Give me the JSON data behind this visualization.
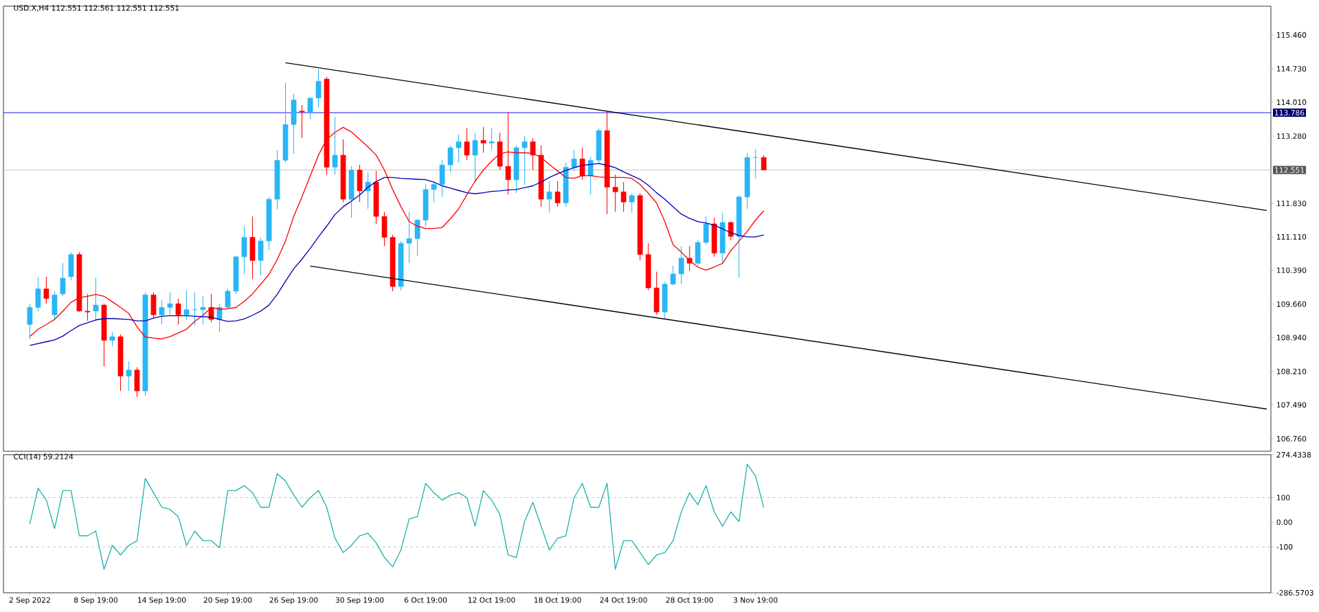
{
  "chart_data": [
    {
      "type": "candlestick",
      "title": "USD.X,H4 112.551 112.561 112.551 112.551",
      "categories": [
        null,
        null,
        null,
        null,
        null,
        null,
        null,
        null,
        null,
        null,
        null,
        null,
        null,
        null,
        null,
        null,
        null,
        null,
        null,
        null,
        null,
        null,
        null,
        null,
        null,
        null,
        null,
        null,
        null,
        null,
        null,
        null,
        null,
        null,
        null,
        null,
        null,
        null,
        null,
        null,
        null,
        null,
        null,
        null,
        null,
        null,
        null,
        null,
        null,
        null,
        null,
        null,
        null,
        null,
        null,
        null,
        null,
        null,
        null,
        null,
        null,
        null,
        null,
        null,
        null,
        null,
        null,
        null,
        null,
        null,
        null,
        null,
        null,
        null,
        null,
        null,
        null,
        null,
        null,
        null,
        null,
        null,
        null,
        null,
        null,
        null,
        null,
        null,
        null,
        null,
        null,
        null,
        null,
        null,
        null,
        null,
        null,
        null,
        null,
        null,
        null,
        null,
        null,
        null,
        null,
        null,
        null,
        null,
        null,
        null,
        null,
        null,
        null,
        null,
        null,
        null,
        null,
        null,
        null,
        null,
        null,
        null,
        null,
        null,
        null,
        null,
        null,
        null,
        null,
        null,
        null,
        null,
        null,
        null,
        null,
        null,
        null,
        null,
        null,
        null,
        null,
        null,
        null,
        null,
        null,
        null,
        null,
        null,
        null,
        null,
        null
      ],
      "ohlc": [
        [
          109.22,
          109.67,
          108.9,
          109.59
        ],
        [
          109.59,
          110.25,
          109.51,
          109.99
        ],
        [
          109.99,
          110.25,
          109.67,
          109.78
        ],
        [
          109.43,
          109.94,
          109.35,
          109.86
        ],
        [
          109.88,
          110.54,
          109.83,
          110.22
        ],
        [
          110.25,
          110.78,
          110.17,
          110.73
        ],
        [
          110.73,
          110.78,
          109.49,
          109.51
        ],
        [
          109.51,
          109.88,
          109.3,
          109.49
        ],
        [
          109.51,
          110.23,
          109.3,
          109.64
        ],
        [
          109.64,
          109.67,
          108.32,
          108.88
        ],
        [
          108.88,
          109.06,
          108.75,
          108.96
        ],
        [
          108.96,
          109.01,
          107.79,
          108.11
        ],
        [
          108.11,
          108.43,
          107.79,
          108.24
        ],
        [
          108.24,
          108.3,
          107.66,
          107.79
        ],
        [
          107.79,
          109.91,
          107.69,
          109.86
        ],
        [
          109.86,
          109.91,
          109.35,
          109.43
        ],
        [
          109.43,
          109.75,
          109.22,
          109.59
        ],
        [
          109.59,
          109.91,
          109.43,
          109.67
        ],
        [
          109.67,
          109.78,
          109.22,
          109.43
        ],
        [
          109.43,
          109.96,
          109.33,
          109.54
        ],
        [
          109.54,
          109.91,
          109.2,
          109.54
        ],
        [
          109.54,
          109.83,
          109.22,
          109.59
        ],
        [
          109.59,
          109.88,
          109.27,
          109.33
        ],
        [
          109.33,
          109.67,
          109.06,
          109.59
        ],
        [
          109.59,
          109.99,
          109.56,
          109.94
        ],
        [
          109.94,
          110.7,
          109.88,
          110.68
        ],
        [
          110.68,
          111.34,
          110.31,
          111.1
        ],
        [
          111.1,
          111.55,
          110.2,
          110.6
        ],
        [
          110.6,
          111.1,
          110.28,
          111.02
        ],
        [
          111.02,
          111.97,
          110.83,
          111.92
        ],
        [
          111.92,
          112.98,
          111.71,
          112.76
        ],
        [
          112.76,
          114.43,
          112.71,
          113.53
        ],
        [
          113.53,
          114.19,
          112.9,
          114.06
        ],
        [
          113.82,
          113.95,
          113.24,
          113.8
        ],
        [
          113.8,
          114.11,
          113.64,
          114.1
        ],
        [
          114.1,
          114.72,
          113.9,
          114.46
        ],
        [
          114.51,
          114.56,
          112.45,
          112.61
        ],
        [
          112.61,
          113.69,
          112.45,
          112.87
        ],
        [
          112.87,
          113.21,
          111.86,
          111.92
        ],
        [
          111.92,
          112.63,
          111.52,
          112.55
        ],
        [
          112.55,
          112.66,
          111.86,
          112.1
        ],
        [
          112.1,
          112.5,
          111.71,
          112.29
        ],
        [
          112.29,
          112.53,
          111.39,
          111.55
        ],
        [
          111.55,
          111.65,
          110.91,
          111.1
        ],
        [
          111.1,
          111.15,
          109.94,
          110.04
        ],
        [
          110.04,
          111.02,
          109.96,
          110.97
        ],
        [
          110.97,
          111.65,
          110.54,
          111.07
        ],
        [
          111.07,
          111.5,
          110.7,
          111.47
        ],
        [
          111.47,
          112.24,
          111.34,
          112.13
        ],
        [
          112.13,
          112.29,
          111.86,
          112.24
        ],
        [
          112.24,
          112.76,
          111.97,
          112.66
        ],
        [
          112.66,
          113.08,
          112.5,
          113.03
        ],
        [
          113.03,
          113.32,
          112.71,
          113.16
        ],
        [
          113.16,
          113.45,
          112.76,
          112.87
        ],
        [
          112.87,
          113.35,
          112.29,
          113.19
        ],
        [
          113.19,
          113.48,
          112.92,
          113.13
        ],
        [
          113.13,
          113.45,
          112.98,
          113.16
        ],
        [
          113.16,
          113.35,
          112.55,
          112.63
        ],
        [
          112.63,
          113.8,
          112.02,
          112.34
        ],
        [
          112.34,
          113.08,
          112.05,
          113.03
        ],
        [
          113.03,
          113.29,
          112.23,
          113.16
        ],
        [
          113.16,
          113.24,
          112.55,
          112.87
        ],
        [
          112.87,
          113.08,
          111.76,
          111.92
        ],
        [
          111.92,
          112.31,
          111.63,
          112.08
        ],
        [
          112.08,
          112.31,
          111.76,
          111.84
        ],
        [
          111.84,
          112.71,
          111.76,
          112.61
        ],
        [
          112.61,
          112.98,
          112.53,
          112.79
        ],
        [
          112.79,
          113.03,
          112.34,
          112.42
        ],
        [
          112.42,
          112.84,
          112.02,
          112.76
        ],
        [
          112.76,
          113.45,
          112.68,
          113.4
        ],
        [
          113.4,
          113.82,
          111.6,
          112.18
        ],
        [
          112.18,
          112.45,
          111.65,
          112.08
        ],
        [
          112.08,
          112.29,
          111.65,
          111.86
        ],
        [
          111.86,
          112.05,
          111.63,
          112.0
        ],
        [
          112.0,
          112.05,
          110.6,
          110.73
        ],
        [
          110.73,
          110.97,
          109.96,
          110.01
        ],
        [
          110.01,
          110.36,
          109.43,
          109.49
        ],
        [
          109.49,
          110.14,
          109.35,
          110.09
        ],
        [
          110.09,
          110.49,
          110.07,
          110.31
        ],
        [
          110.31,
          110.91,
          110.09,
          110.65
        ],
        [
          110.65,
          110.91,
          110.38,
          110.54
        ],
        [
          110.54,
          111.04,
          110.49,
          110.99
        ],
        [
          110.99,
          111.55,
          110.94,
          111.39
        ],
        [
          111.39,
          111.52,
          110.68,
          110.76
        ],
        [
          110.76,
          111.63,
          110.54,
          111.42
        ],
        [
          111.42,
          111.44,
          111.04,
          111.12
        ],
        [
          111.12,
          112.0,
          110.23,
          111.97
        ],
        [
          111.97,
          112.92,
          111.71,
          112.82
        ],
        [
          112.82,
          113.0,
          112.37,
          112.82
        ],
        [
          112.82,
          112.87,
          112.55,
          112.55
        ],
        null,
        null,
        null,
        null,
        null,
        null,
        null,
        null,
        null,
        null,
        null,
        null,
        null,
        null,
        null,
        null,
        null,
        null,
        null,
        null,
        null,
        null,
        null,
        null,
        null,
        null,
        null,
        null,
        null,
        null,
        null,
        null,
        null,
        null,
        null,
        null,
        null,
        null,
        null,
        null,
        null,
        null,
        null,
        null,
        null,
        null,
        null,
        null,
        null,
        null,
        null,
        null,
        null,
        null,
        null,
        null,
        null,
        null,
        null,
        null,
        null
      ],
      "series": [
        {
          "type": "line",
          "color": "#ff0000",
          "values": [
            108.96,
            109.12,
            109.22,
            109.33,
            109.51,
            109.7,
            109.8,
            109.83,
            109.87,
            109.83,
            109.71,
            109.59,
            109.46,
            109.17,
            108.95,
            108.93,
            108.91,
            108.96,
            109.04,
            109.12,
            109.29,
            109.42,
            109.59,
            109.55,
            109.56,
            109.59,
            109.72,
            109.88,
            110.09,
            110.3,
            110.62,
            111.02,
            111.55,
            111.97,
            112.42,
            112.87,
            113.21,
            113.36,
            113.47,
            113.37,
            113.21,
            113.05,
            112.87,
            112.55,
            112.13,
            111.76,
            111.44,
            111.34,
            111.29,
            111.29,
            111.31,
            111.5,
            111.71,
            112.02,
            112.31,
            112.55,
            112.74,
            112.9,
            112.94,
            112.92,
            112.92,
            112.91,
            112.82,
            112.67,
            112.53,
            112.39,
            112.37,
            112.43,
            112.43,
            112.4,
            112.39,
            112.39,
            112.39,
            112.37,
            112.24,
            112.05,
            111.84,
            111.44,
            110.94,
            110.78,
            110.6,
            110.46,
            110.39,
            110.46,
            110.54,
            110.81,
            111.02,
            111.23,
            111.47,
            111.67,
            null,
            null,
            null,
            null,
            null,
            null,
            null,
            null,
            null,
            null,
            null,
            null,
            null,
            null,
            null,
            null,
            null,
            null,
            null,
            null,
            null,
            null,
            null,
            null,
            null,
            null,
            null,
            null,
            null,
            null,
            null,
            null,
            null,
            null,
            null,
            null,
            null,
            null,
            null,
            null,
            null,
            null,
            null,
            null,
            null,
            null,
            null,
            null,
            null,
            null,
            null,
            null,
            null,
            null,
            null,
            null,
            null,
            null,
            null,
            null,
            null
          ]
        },
        {
          "type": "line",
          "color": "#0000b4",
          "values": [
            108.77,
            108.81,
            108.85,
            108.89,
            108.97,
            109.09,
            109.2,
            109.26,
            109.32,
            109.35,
            109.35,
            109.34,
            109.33,
            109.3,
            109.3,
            109.36,
            109.4,
            109.41,
            109.41,
            109.41,
            109.4,
            109.39,
            109.38,
            109.33,
            109.29,
            109.3,
            109.34,
            109.42,
            109.51,
            109.64,
            109.87,
            110.15,
            110.42,
            110.63,
            110.86,
            111.11,
            111.34,
            111.59,
            111.76,
            111.88,
            112.01,
            112.18,
            112.3,
            112.39,
            112.39,
            112.37,
            112.36,
            112.35,
            112.34,
            112.29,
            112.21,
            112.16,
            112.11,
            112.06,
            112.04,
            112.06,
            112.09,
            112.1,
            112.12,
            112.13,
            112.17,
            112.21,
            112.29,
            112.39,
            112.47,
            112.54,
            112.6,
            112.65,
            112.67,
            112.69,
            112.65,
            112.6,
            112.51,
            112.43,
            112.35,
            112.22,
            112.06,
            111.92,
            111.76,
            111.6,
            111.51,
            111.44,
            111.41,
            111.36,
            111.28,
            111.2,
            111.14,
            111.11,
            111.11,
            111.15,
            null,
            null,
            null,
            null,
            null,
            null,
            null,
            null,
            null,
            null,
            null,
            null,
            null,
            null,
            null,
            null,
            null,
            null,
            null,
            null,
            null,
            null,
            null,
            null,
            null,
            null,
            null,
            null,
            null,
            null,
            null,
            null,
            null,
            null,
            null,
            null,
            null,
            null,
            null,
            null,
            null,
            null,
            null,
            null,
            null,
            null,
            null,
            null,
            null,
            null,
            null,
            null,
            null,
            null,
            null,
            null,
            null,
            null,
            null,
            null,
            null
          ]
        },
        {
          "type": "line",
          "color": "#000000",
          "values": [
            null,
            null,
            null,
            null,
            null,
            null,
            null,
            null,
            null,
            null,
            null,
            null,
            null,
            null,
            null,
            null,
            null,
            null,
            null,
            null,
            null,
            null,
            null,
            null,
            null,
            null,
            null,
            null,
            null,
            null,
            null,
            114.86,
            null,
            null,
            null,
            null,
            null,
            null,
            null,
            null,
            null,
            null,
            null,
            null,
            null,
            null,
            null,
            null,
            null,
            null,
            null,
            null,
            null,
            null,
            null,
            null,
            null,
            null,
            null,
            null,
            null,
            null,
            null,
            null,
            null,
            null,
            null,
            null,
            null,
            null,
            null,
            null,
            null,
            null,
            null,
            null,
            null,
            null,
            null,
            null,
            null,
            null,
            null,
            null,
            null,
            null,
            null,
            null,
            null,
            null,
            null,
            null,
            null,
            null,
            null,
            null,
            null,
            null,
            null,
            null,
            null,
            null,
            null,
            null,
            null,
            null,
            null,
            null,
            null,
            null,
            null,
            null,
            null,
            null,
            null,
            null,
            null,
            null,
            null,
            null,
            null,
            null,
            null,
            null,
            null,
            null,
            null,
            null,
            null,
            null,
            null,
            null,
            null,
            null,
            null,
            null,
            null,
            null,
            null,
            null,
            null,
            null,
            null,
            null,
            null,
            null,
            null,
            null,
            null,
            null,
            111.68
          ]
        },
        {
          "type": "line",
          "color": "#000000",
          "values": [
            null,
            null,
            null,
            null,
            null,
            null,
            null,
            null,
            null,
            null,
            null,
            null,
            null,
            null,
            null,
            null,
            null,
            null,
            null,
            null,
            null,
            null,
            null,
            null,
            null,
            null,
            null,
            null,
            null,
            null,
            null,
            null,
            null,
            null,
            110.48,
            null,
            null,
            null,
            null,
            null,
            null,
            null,
            null,
            null,
            null,
            null,
            null,
            null,
            null,
            null,
            null,
            null,
            null,
            null,
            null,
            null,
            null,
            null,
            null,
            null,
            null,
            null,
            null,
            null,
            null,
            null,
            null,
            null,
            null,
            null,
            null,
            null,
            null,
            null,
            null,
            null,
            null,
            null,
            null,
            null,
            null,
            null,
            null,
            null,
            null,
            null,
            null,
            null,
            null,
            null,
            null,
            null,
            null,
            null,
            null,
            null,
            null,
            null,
            null,
            null,
            null,
            null,
            null,
            null,
            null,
            null,
            null,
            null,
            null,
            null,
            null,
            null,
            null,
            null,
            null,
            null,
            null,
            null,
            null,
            null,
            null,
            null,
            null,
            null,
            null,
            null,
            null,
            null,
            null,
            null,
            null,
            null,
            null,
            null,
            null,
            null,
            null,
            null,
            null,
            null,
            null,
            null,
            null,
            null,
            null,
            null,
            null,
            null,
            null,
            null,
            107.4
          ]
        }
      ],
      "ylim": [
        106.49,
        116.08
      ],
      "yticks": [
        {
          "value": 115.46,
          "label": "115.460"
        },
        {
          "value": 114.73,
          "label": "114.730"
        },
        {
          "value": 114.01,
          "label": "114.010"
        },
        {
          "value": 113.28,
          "label": "113.280"
        },
        {
          "value": 111.83,
          "label": "111.830"
        },
        {
          "value": 111.11,
          "label": "111.110"
        },
        {
          "value": 110.39,
          "label": "110.390"
        },
        {
          "value": 109.66,
          "label": "109.660"
        },
        {
          "value": 108.94,
          "label": "108.940"
        },
        {
          "value": 108.21,
          "label": "108.210"
        },
        {
          "value": 107.49,
          "label": "107.490"
        },
        {
          "value": 106.76,
          "label": "106.760"
        }
      ],
      "ref_lines": [
        {
          "axis": "y",
          "value": 113.786,
          "label": "113.786",
          "color": "#0000ff"
        },
        {
          "axis": "y",
          "value": 112.551,
          "label": "112.551",
          "color": "#c0c0c0"
        }
      ],
      "tick_labels": "y"
    },
    {
      "type": "line",
      "title": "CCI(14) 59.2124",
      "categories": [
        "2 Sep 2022",
        null,
        null,
        null,
        null,
        null,
        null,
        null,
        "8 Sep 19:00",
        null,
        null,
        null,
        null,
        null,
        null,
        null,
        "14 Sep 19:00",
        null,
        null,
        null,
        null,
        null,
        null,
        null,
        "20 Sep 19:00",
        null,
        null,
        null,
        null,
        null,
        null,
        null,
        "26 Sep 19:00",
        null,
        null,
        null,
        null,
        null,
        null,
        null,
        "30 Sep 19:00",
        null,
        null,
        null,
        null,
        null,
        null,
        null,
        "6 Oct 19:00",
        null,
        null,
        null,
        null,
        null,
        null,
        null,
        "12 Oct 19:00",
        null,
        null,
        null,
        null,
        null,
        null,
        null,
        "18 Oct 19:00",
        null,
        null,
        null,
        null,
        null,
        null,
        null,
        "24 Oct 19:00",
        null,
        null,
        null,
        null,
        null,
        null,
        null,
        "28 Oct 19:00",
        null,
        null,
        null,
        null,
        null,
        null,
        null,
        "3 Nov 19:00",
        null,
        null,
        null,
        null,
        null,
        null,
        null,
        null,
        null,
        null,
        null,
        null,
        null,
        null,
        null,
        null,
        null,
        null,
        null,
        null,
        null,
        null,
        null,
        null,
        null,
        null,
        null,
        null,
        null,
        null,
        null,
        null,
        null,
        null,
        null,
        null,
        null,
        null,
        null,
        null,
        null,
        null,
        null,
        null,
        null,
        null,
        null,
        null,
        null,
        null,
        null,
        null,
        null,
        null,
        null,
        null,
        null,
        null,
        null,
        null,
        null,
        null
      ],
      "series": [
        {
          "color": "#20b2aa",
          "values": [
            -7,
            139,
            90,
            -26,
            129,
            129,
            -55,
            -55,
            -36,
            -191,
            -94,
            -133,
            -94,
            -75,
            178,
            120,
            61,
            52,
            23,
            -94,
            -36,
            -75,
            -75,
            -104,
            129,
            129,
            149,
            120,
            61,
            61,
            197,
            168,
            110,
            61,
            100,
            129,
            61,
            -65,
            -123,
            -94,
            -55,
            -45,
            -84,
            -143,
            -181,
            -113,
            13,
            23,
            158,
            120,
            90,
            110,
            120,
            100,
            -16,
            129,
            90,
            32,
            -133,
            -143,
            3,
            81,
            -16,
            -113,
            -65,
            -55,
            100,
            158,
            61,
            61,
            158,
            -191,
            -75,
            -75,
            -123,
            -172,
            -133,
            -123,
            -75,
            42,
            120,
            71,
            149,
            42,
            -16,
            42,
            3,
            236,
            188,
            59,
            null,
            null,
            null,
            null,
            null,
            null,
            null,
            null,
            null,
            null,
            null,
            null,
            null,
            null,
            null,
            null,
            null,
            null,
            null,
            null,
            null,
            null,
            null,
            null,
            null,
            null,
            null,
            null,
            null,
            null,
            null,
            null,
            null,
            null,
            null,
            null,
            null,
            null,
            null,
            null,
            null,
            null,
            null,
            null,
            null,
            null,
            null,
            null,
            null,
            null,
            null,
            null,
            null,
            null,
            null,
            null,
            null,
            null,
            null,
            null,
            null
          ]
        }
      ],
      "ylim": [
        -286.5703,
        274.4338
      ],
      "yticks": [
        274.4338,
        100,
        {
          "value": 0,
          "label": "0.00"
        },
        -100,
        -286.5703
      ],
      "ref_lines": [
        {
          "axis": "y",
          "value": 100,
          "color": "#c0c0c0",
          "line_style": "dashed"
        },
        {
          "axis": "y",
          "value": -100,
          "color": "#c0c0c0",
          "line_style": "dashed"
        }
      ]
    }
  ]
}
